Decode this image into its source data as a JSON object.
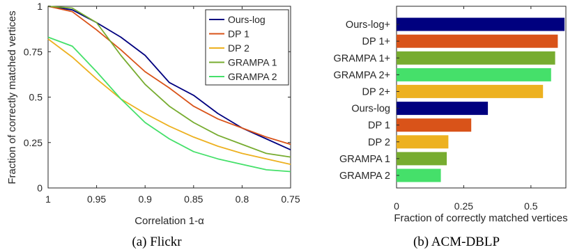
{
  "chart_data": [
    {
      "type": "line",
      "caption": "(a) Flickr",
      "xlabel": "Correlation 1-α",
      "ylabel": "Fraction of correctly matched vertices",
      "x": [
        1,
        0.975,
        0.95,
        0.925,
        0.9,
        0.875,
        0.85,
        0.825,
        0.8,
        0.775,
        0.75
      ],
      "xlim": [
        1,
        0.75
      ],
      "x_reversed": true,
      "ylim": [
        0,
        1
      ],
      "xticks": [
        "1",
        "0.95",
        "0.9",
        "0.85",
        "0.8",
        "0.75"
      ],
      "yticks": [
        "0",
        "0.25",
        "0.5",
        "0.75",
        "1"
      ],
      "grid": false,
      "legend_position": "top-right",
      "series": [
        {
          "name": "Ours-log",
          "color": "#00007f",
          "values": [
            1,
            0.98,
            0.91,
            0.83,
            0.73,
            0.58,
            0.51,
            0.41,
            0.33,
            0.27,
            0.21
          ]
        },
        {
          "name": "DP 1",
          "color": "#d95319",
          "values": [
            1,
            0.97,
            0.87,
            0.76,
            0.64,
            0.55,
            0.45,
            0.38,
            0.33,
            0.28,
            0.24
          ]
        },
        {
          "name": "DP 2",
          "color": "#edb120",
          "values": [
            0.82,
            0.72,
            0.6,
            0.49,
            0.41,
            0.34,
            0.28,
            0.23,
            0.19,
            0.16,
            0.13
          ]
        },
        {
          "name": "GRAMPA 1",
          "color": "#77ac30",
          "values": [
            1,
            0.99,
            0.91,
            0.73,
            0.57,
            0.45,
            0.36,
            0.29,
            0.24,
            0.19,
            0.17
          ]
        },
        {
          "name": "GRAMPA 2",
          "color": "#45e06a",
          "values": [
            0.83,
            0.78,
            0.64,
            0.49,
            0.36,
            0.27,
            0.2,
            0.16,
            0.13,
            0.1,
            0.09
          ]
        }
      ]
    },
    {
      "type": "bar",
      "orientation": "horizontal",
      "caption": "(b) ACM-DBLP",
      "xlabel": "Fraction of correctly matched vertices",
      "xlim": [
        0,
        0.63
      ],
      "xticks": [
        "0",
        "0.25",
        "0.5"
      ],
      "grid": false,
      "categories": [
        "Ours-log+",
        "DP 1+",
        "GRAMPA 1+",
        "GRAMPA 2+",
        "DP 2+",
        "Ours-log",
        "DP 1",
        "DP 2",
        "GRAMPA 1",
        "GRAMPA 2"
      ],
      "values": [
        0.625,
        0.6,
        0.59,
        0.575,
        0.545,
        0.34,
        0.278,
        0.193,
        0.187,
        0.165
      ],
      "colors": [
        "#00007f",
        "#d95319",
        "#77ac30",
        "#45e06a",
        "#edb120",
        "#00007f",
        "#d95319",
        "#edb120",
        "#77ac30",
        "#45e06a"
      ]
    }
  ]
}
